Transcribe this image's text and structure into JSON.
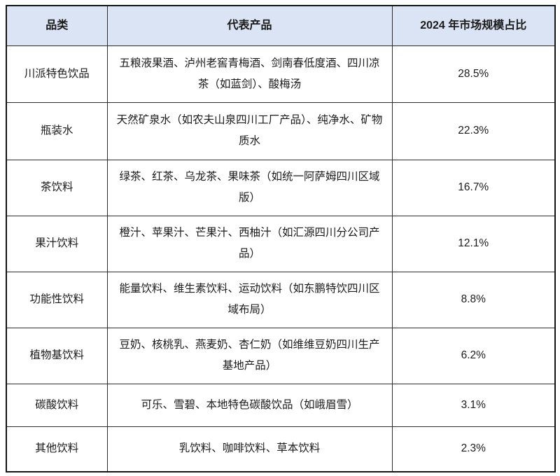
{
  "table": {
    "title_context": "beverage category market share table",
    "headers": {
      "category": "品类",
      "products": "代表产品",
      "share": "2024 年市场规模占比"
    },
    "rows": [
      {
        "category": "川派特色饮品",
        "products": "五粮液果酒、泸州老窖青梅酒、剑南春低度酒、四川凉茶（如蓝剑）、酸梅汤",
        "share": "28.5%"
      },
      {
        "category": "瓶装水",
        "products": "天然矿泉水（如农夫山泉四川工厂产品）、纯净水、矿物质水",
        "share": "22.3%"
      },
      {
        "category": "茶饮料",
        "products": "绿茶、红茶、乌龙茶、果味茶（如统一阿萨姆四川区域版）",
        "share": "16.7%"
      },
      {
        "category": "果汁饮料",
        "products": "橙汁、苹果汁、芒果汁、西柚汁（如汇源四川分公司产品）",
        "share": "12.1%"
      },
      {
        "category": "功能性饮料",
        "products": "能量饮料、维生素饮料、运动饮料（如东鹏特饮四川区域布局）",
        "share": "8.8%"
      },
      {
        "category": "植物基饮料",
        "products": "豆奶、核桃乳、燕麦奶、杏仁奶（如维维豆奶四川生产基地产品）",
        "share": "6.2%"
      },
      {
        "category": "碳酸饮料",
        "products": "可乐、雪碧、本地特色碳酸饮品（如峨眉雪）",
        "share": "3.1%"
      },
      {
        "category": "其他饮料",
        "products": "乳饮料、咖啡饮料、草本饮料",
        "share": "2.3%"
      }
    ],
    "colors": {
      "header_bg": "#dbe4f4",
      "border": "#2b2b2b",
      "outer_border": "#141414",
      "text": "#1a1a1a",
      "row_bg": "#ffffff"
    }
  },
  "chart_data": {
    "type": "table",
    "title": "2024 年市场规模占比",
    "categories": [
      "川派特色饮品",
      "瓶装水",
      "茶饮料",
      "果汁饮料",
      "功能性饮料",
      "植物基饮料",
      "碳酸饮料",
      "其他饮料"
    ],
    "values": [
      28.5,
      22.3,
      16.7,
      12.1,
      8.8,
      6.2,
      3.1,
      2.3
    ],
    "value_unit": "%"
  }
}
